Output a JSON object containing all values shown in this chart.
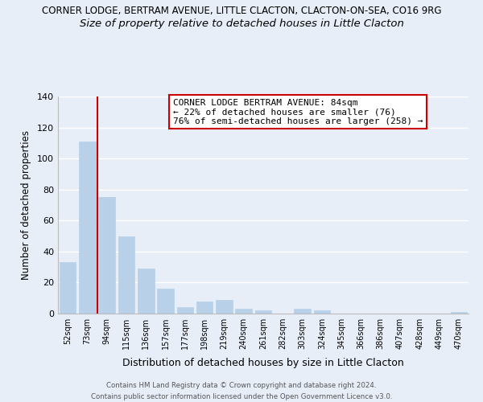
{
  "title_line1": "CORNER LODGE, BERTRAM AVENUE, LITTLE CLACTON, CLACTON-ON-SEA, CO16 9RG",
  "title_line2": "Size of property relative to detached houses in Little Clacton",
  "xlabel": "Distribution of detached houses by size in Little Clacton",
  "ylabel": "Number of detached properties",
  "bar_labels": [
    "52sqm",
    "73sqm",
    "94sqm",
    "115sqm",
    "136sqm",
    "157sqm",
    "177sqm",
    "198sqm",
    "219sqm",
    "240sqm",
    "261sqm",
    "282sqm",
    "303sqm",
    "324sqm",
    "345sqm",
    "366sqm",
    "386sqm",
    "407sqm",
    "428sqm",
    "449sqm",
    "470sqm"
  ],
  "bar_values": [
    33,
    111,
    75,
    50,
    29,
    16,
    4,
    8,
    9,
    3,
    2,
    0,
    3,
    2,
    0,
    0,
    0,
    0,
    0,
    0,
    1
  ],
  "bar_color": "#b8d0e8",
  "bar_edge_color": "#b8d0e8",
  "vline_color": "#cc0000",
  "ylim": [
    0,
    140
  ],
  "yticks": [
    0,
    20,
    40,
    60,
    80,
    100,
    120,
    140
  ],
  "annotation_title": "CORNER LODGE BERTRAM AVENUE: 84sqm",
  "annotation_line1": "← 22% of detached houses are smaller (76)",
  "annotation_line2": "76% of semi-detached houses are larger (258) →",
  "annotation_box_color": "#ffffff",
  "annotation_box_edge": "#cc0000",
  "footer_line1": "Contains HM Land Registry data © Crown copyright and database right 2024.",
  "footer_line2": "Contains public sector information licensed under the Open Government Licence v3.0.",
  "background_color": "#e8eef8",
  "title1_fontsize": 8.5,
  "title2_fontsize": 9.5,
  "grid_color": "#ffffff"
}
